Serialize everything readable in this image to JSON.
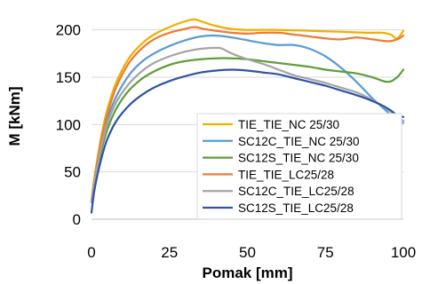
{
  "chart_data": {
    "type": "line",
    "title": "",
    "xlabel": "Pomak [mm]",
    "ylabel": "M [kNm]",
    "xlim": [
      0,
      100
    ],
    "ylim": [
      0,
      225
    ],
    "xticks": [
      0,
      25,
      50,
      75,
      100
    ],
    "yticks": [
      0,
      50,
      100,
      150,
      200
    ],
    "grid": "horizontal",
    "legend_position": "bottom-right",
    "series": [
      {
        "name": "TIE_TIE_NC 25/30",
        "color": "#F0B000",
        "x": [
          0,
          1,
          3,
          5,
          8,
          12,
          16,
          20,
          25,
          30,
          33,
          36,
          40,
          45,
          50,
          60,
          70,
          80,
          88,
          93,
          96,
          98,
          100
        ],
        "y": [
          18,
          45,
          85,
          115,
          145,
          170,
          185,
          195,
          203,
          209,
          211,
          208,
          204,
          201,
          200,
          200,
          199,
          198,
          197,
          197,
          195,
          191,
          199
        ]
      },
      {
        "name": "SC12C_TIE_NC 25/30",
        "color": "#5B9BD5",
        "x": [
          0,
          1,
          3,
          5,
          8,
          12,
          16,
          20,
          25,
          30,
          35,
          40,
          45,
          50,
          55,
          60,
          65,
          70,
          75,
          80,
          85,
          90,
          95,
          98,
          100
        ],
        "y": [
          20,
          42,
          78,
          105,
          130,
          152,
          166,
          175,
          183,
          189,
          193,
          194,
          192,
          189,
          186,
          184,
          184,
          180,
          172,
          160,
          145,
          128,
          113,
          102,
          102
        ]
      },
      {
        "name": "SC12S_TIE_NC 25/30",
        "color": "#5E9E3A",
        "x": [
          0,
          1,
          3,
          5,
          8,
          12,
          16,
          20,
          25,
          30,
          35,
          40,
          45,
          50,
          55,
          60,
          65,
          70,
          75,
          80,
          85,
          90,
          95,
          98,
          100
        ],
        "y": [
          18,
          38,
          70,
          94,
          117,
          136,
          148,
          156,
          163,
          167,
          169,
          170,
          170,
          169,
          167,
          165,
          163,
          161,
          158,
          156,
          154,
          150,
          145,
          150,
          158
        ]
      },
      {
        "name": "TIE_TIE_LC25/28",
        "color": "#ED7D31",
        "x": [
          0,
          1,
          3,
          5,
          8,
          12,
          16,
          20,
          25,
          30,
          33,
          36,
          40,
          45,
          50,
          55,
          60,
          65,
          70,
          75,
          80,
          85,
          90,
          95,
          98,
          100
        ],
        "y": [
          20,
          44,
          82,
          110,
          140,
          165,
          180,
          190,
          197,
          201,
          203,
          201,
          199,
          197,
          196,
          197,
          197,
          195,
          193,
          191,
          190,
          192,
          190,
          188,
          190,
          194
        ]
      },
      {
        "name": "SC12C_TIE_LC25/28",
        "color": "#A5A5A5",
        "x": [
          0,
          1,
          3,
          5,
          8,
          12,
          16,
          20,
          25,
          30,
          35,
          40,
          42,
          45,
          50,
          55,
          60,
          65,
          70,
          75,
          80,
          85,
          90,
          95,
          98,
          100
        ],
        "y": [
          18,
          40,
          74,
          100,
          124,
          143,
          156,
          165,
          172,
          177,
          180,
          181,
          180,
          175,
          169,
          164,
          158,
          152,
          148,
          144,
          139,
          134,
          126,
          116,
          108,
          104
        ]
      },
      {
        "name": "SC12S_TIE_LC25/28",
        "color": "#2F55A4",
        "x": [
          0,
          1,
          3,
          5,
          8,
          12,
          16,
          20,
          25,
          30,
          35,
          40,
          45,
          50,
          55,
          60,
          65,
          70,
          75,
          80,
          85,
          90,
          95,
          98,
          100
        ],
        "y": [
          7,
          32,
          62,
          84,
          104,
          120,
          131,
          139,
          146,
          151,
          155,
          157,
          158,
          157,
          155,
          153,
          149,
          145,
          141,
          136,
          131,
          125,
          117,
          110,
          108
        ]
      }
    ]
  }
}
